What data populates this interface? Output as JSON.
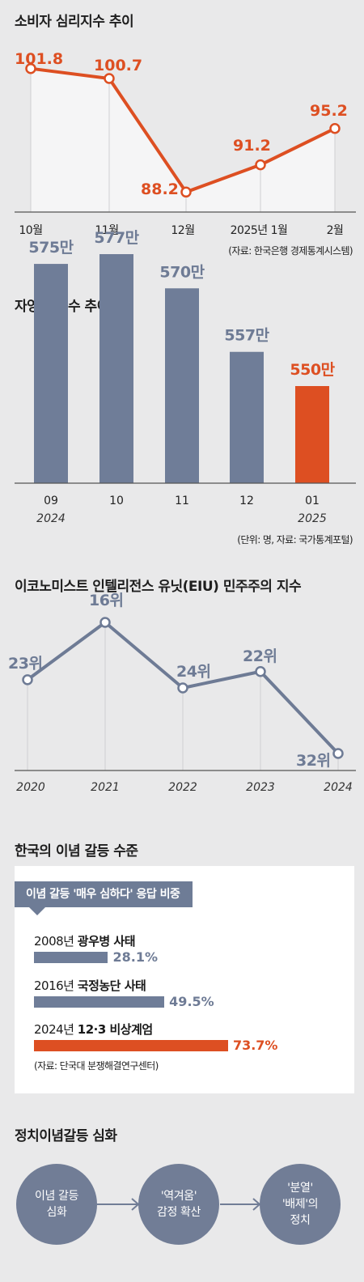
{
  "sections": {
    "consumer": {
      "title": "소비자 심리지수 추이",
      "source": "(자료: 한국은행 경제통계시스템)"
    },
    "selfemp": {
      "title": "자영업자 수 추이",
      "source": "(단위: 명, 자료: 국가통계포털)"
    },
    "eiu": {
      "title": "이코노미스트 인텔리전스 유닛(EIU) 민주주의 지수"
    },
    "conflict": {
      "title": "한국의 이념 갈등 수준",
      "card_header": "이념 갈등 '매우 심하다' 응답 비중",
      "source": "(자료: 단국대 분쟁해결연구센터)",
      "rows": [
        {
          "year": "2008년",
          "event": "광우병 사태",
          "value_label": "28.1%"
        },
        {
          "year": "2016년",
          "event": "국정농단 사태",
          "value_label": "49.5%"
        },
        {
          "year": "2024년",
          "event": "12·3 비상계엄",
          "value_label": "73.7%"
        }
      ]
    },
    "flow": {
      "title": "정치이념갈등 심화",
      "steps": [
        [
          "이념 갈등",
          "심화"
        ],
        [
          "'역겨움'",
          "감정 확산"
        ],
        [
          "'분열'",
          "'배제'의",
          "정치"
        ]
      ]
    }
  },
  "colors": {
    "orange": "#dd4f22",
    "slate": "#6e7b95",
    "bar_slate": "#6f7d98",
    "background": "#e9e9ea",
    "area_fill": "#f5f5f6"
  },
  "icons": [
    "arrow-right-icon"
  ],
  "chart_data": [
    {
      "id": "consumer",
      "type": "line",
      "categories": [
        "10월",
        "11월",
        "12월",
        "2025년 1월",
        "2월"
      ],
      "values": [
        101.8,
        100.7,
        88.2,
        91.2,
        95.2
      ],
      "value_labels": [
        "101.8",
        "100.7",
        "88.2",
        "91.2",
        "95.2"
      ],
      "ylim": [
        86,
        104
      ],
      "area_fill": true,
      "color": "#dd4f22"
    },
    {
      "id": "selfemp",
      "type": "bar",
      "categories": [
        "09",
        "10",
        "11",
        "12",
        "01"
      ],
      "sublabels": [
        "2024",
        "",
        "",
        "",
        "2025"
      ],
      "values": [
        5750000,
        5770000,
        5700000,
        5570000,
        5500000
      ],
      "value_labels": [
        "575만",
        "577만",
        "570만",
        "557만",
        "550만"
      ],
      "highlight_index": 4,
      "ylim": [
        0,
        5770000
      ]
    },
    {
      "id": "eiu",
      "type": "line",
      "categories": [
        "2020",
        "2021",
        "2022",
        "2023",
        "2024"
      ],
      "values": [
        23,
        16,
        24,
        22,
        32
      ],
      "value_labels": [
        "23위",
        "16위",
        "24위",
        "22위",
        "32위"
      ],
      "ylim": [
        33,
        15
      ],
      "inverted": true,
      "color": "#6e7b95"
    },
    {
      "id": "conflict",
      "type": "bar",
      "orientation": "horizontal",
      "categories": [
        "2008년 광우병 사태",
        "2016년 국정농단 사태",
        "2024년 12·3 비상계엄"
      ],
      "values": [
        28.1,
        49.5,
        73.7
      ],
      "unit": "%",
      "xlim": [
        0,
        100
      ],
      "highlight_index": 2
    }
  ]
}
